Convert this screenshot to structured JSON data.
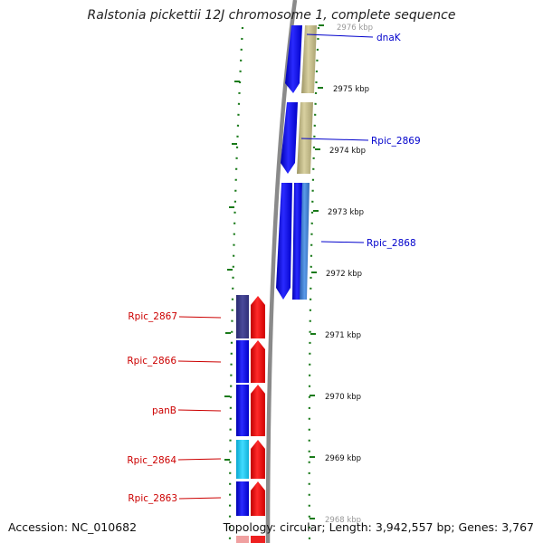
{
  "title": "Ralstonia pickettii 12J chromosome 1, complete sequence",
  "footer": {
    "accession": "Accession: NC_010682",
    "summary": "Topology: circular; Length: 3,942,557 bp; Genes: 3,767"
  },
  "colors": {
    "backbone": "#8a8a8a",
    "forward_label": "#0000cc",
    "reverse_label": "#cc0000",
    "ticks": "#1a7a1a"
  },
  "scale_ticks": [
    {
      "label": "2976 kbp"
    },
    {
      "label": "2975 kbp"
    },
    {
      "label": "2974 kbp"
    },
    {
      "label": "2973 kbp"
    },
    {
      "label": "2972 kbp"
    },
    {
      "label": "2971 kbp"
    },
    {
      "label": "2970 kbp"
    },
    {
      "label": "2969 kbp"
    },
    {
      "label": "2968 kbp"
    }
  ],
  "genes_right": [
    {
      "label": "dnaK",
      "cds_color": "#0a0ae6",
      "gene_color": "#bdb584"
    },
    {
      "label": "Rpic_2869",
      "cds_color": "#0a0ae6",
      "gene_color": "#bdb584"
    },
    {
      "label": "Rpic_2868",
      "cds_color": "#0a0ae6",
      "gene_color": "#3a7fd8"
    }
  ],
  "genes_left": [
    {
      "label": "Rpic_2867",
      "cds_color": "#3c3c8c",
      "gene_color": "#ee0000"
    },
    {
      "label": "Rpic_2866",
      "cds_color": "#0a0ae6",
      "gene_color": "#ee0000"
    },
    {
      "label": "panB",
      "cds_color": "#0a0ae6",
      "gene_color": "#ee0000"
    },
    {
      "label": "Rpic_2864",
      "cds_color": "#18c4e6",
      "gene_color": "#ee0000"
    },
    {
      "label": "Rpic_2863",
      "cds_color": "#0a0ae6",
      "gene_color": "#ee0000"
    }
  ]
}
